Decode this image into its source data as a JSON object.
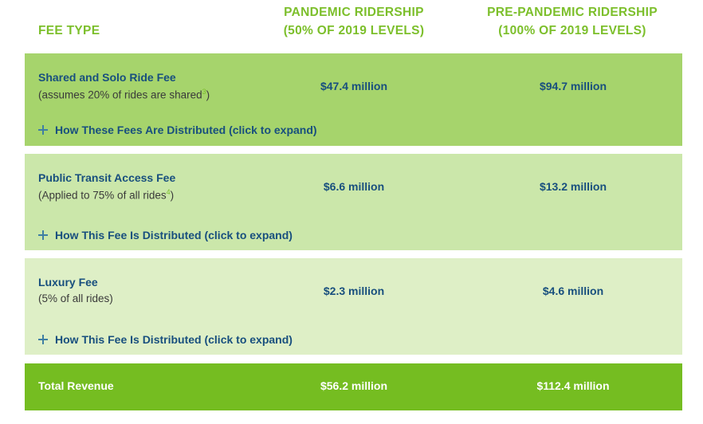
{
  "header": {
    "fee_type": "FEE TYPE",
    "pandemic_line1": "PANDEMIC RIDERSHIP",
    "pandemic_line2": "(50% OF 2019 LEVELS)",
    "prepandemic_line1": "PRE-PANDEMIC RIDERSHIP",
    "prepandemic_line2": "(100% OF 2019 LEVELS)"
  },
  "rows": [
    {
      "name": "Shared and Solo Ride Fee",
      "note_prefix": "(assumes 20% of rides are shared",
      "note_sup": "3",
      "note_suffix": ")",
      "pandemic": "$47.4 million",
      "prepandemic": "$94.7 million",
      "expand_label": "How These Fees Are Distributed (click to expand)"
    },
    {
      "name": "Public Transit Access Fee",
      "note_prefix": "(Applied to 75% of all rides",
      "note_sup": "4",
      "note_suffix": ")",
      "pandemic": "$6.6 million",
      "prepandemic": "$13.2 million",
      "expand_label": "How This Fee Is Distributed (click to expand)"
    },
    {
      "name": "Luxury Fee",
      "note_prefix": "(5% of all rides)",
      "note_sup": "",
      "note_suffix": "",
      "pandemic": "$2.3 million",
      "prepandemic": "$4.6 million",
      "expand_label": "How This Fee Is Distributed (click to expand)"
    }
  ],
  "total": {
    "name": "Total Revenue",
    "pandemic": "$56.2 million",
    "prepandemic": "$112.4 million"
  },
  "colors": {
    "accent_green": "#7cbf2b",
    "text_blue": "#184f7e",
    "row1_bg": "#a6d46c",
    "row2_bg": "#cbe7aa",
    "row3_bg": "#deefc6",
    "total_bg": "#75bd21"
  }
}
